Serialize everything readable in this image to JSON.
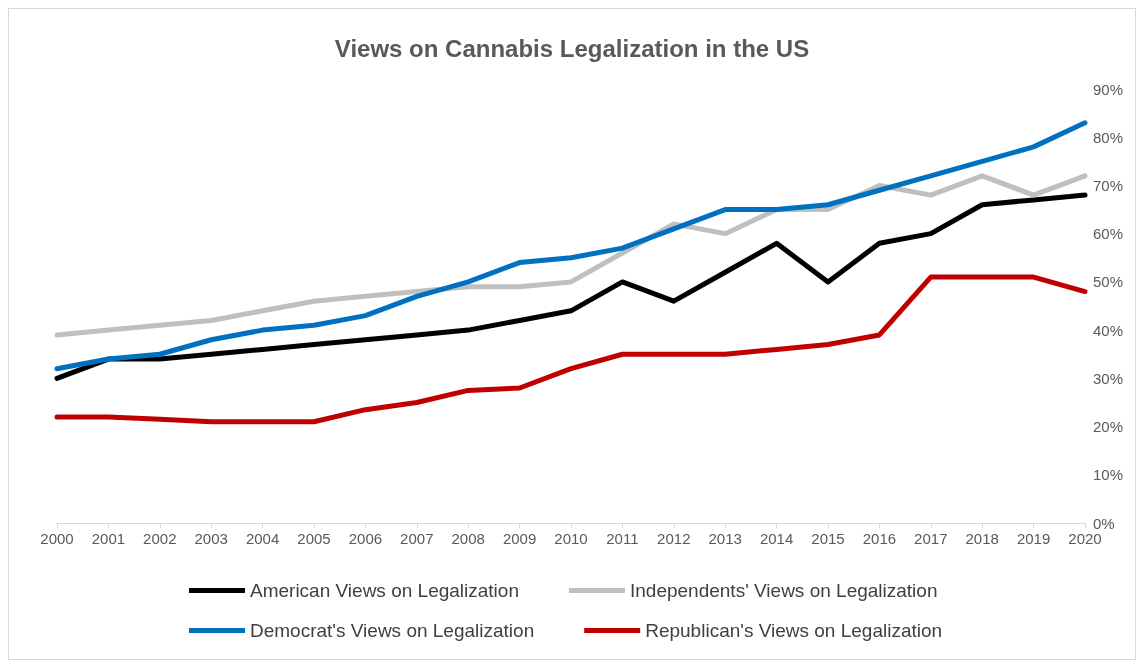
{
  "chart_data": {
    "type": "line",
    "title": "Views on Cannabis Legalization in the US",
    "categories": [
      "2000",
      "2001",
      "2002",
      "2003",
      "2004",
      "2005",
      "2006",
      "2007",
      "2008",
      "2009",
      "2010",
      "2011",
      "2012",
      "2013",
      "2014",
      "2015",
      "2016",
      "2017",
      "2018",
      "2019",
      "2020"
    ],
    "series": [
      {
        "name": "American Views on Legalization",
        "color": "#000000",
        "values": [
          30,
          34,
          34,
          35,
          36,
          37,
          38,
          39,
          40,
          42,
          44,
          50,
          46,
          52,
          58,
          50,
          58,
          60,
          66,
          67,
          68
        ]
      },
      {
        "name": "Independents' Views on Legalization",
        "color": "#bfbfbf",
        "values": [
          39,
          40,
          41,
          42,
          44,
          46,
          47,
          48,
          49,
          49,
          50,
          56,
          62,
          60,
          65,
          65,
          70,
          68,
          72,
          68,
          72
        ]
      },
      {
        "name": "Democrat's Views on Legalization",
        "color": "#0070c0",
        "values": [
          32,
          34,
          35,
          38,
          40,
          41,
          43,
          47,
          50,
          54,
          55,
          57,
          61,
          65,
          65,
          66,
          69,
          72,
          75,
          78,
          83
        ]
      },
      {
        "name": "Republican's Views on Legalization",
        "color": "#c00000",
        "values": [
          22,
          22,
          21.5,
          21,
          21,
          21,
          23.5,
          25,
          27.5,
          28,
          32,
          35,
          35,
          35,
          36,
          37,
          39,
          51,
          51,
          51,
          48
        ]
      }
    ],
    "ylim": [
      0,
      90
    ],
    "yticks": [
      {
        "value": 0,
        "label": "0%"
      },
      {
        "value": 10,
        "label": "10%"
      },
      {
        "value": 20,
        "label": "20%"
      },
      {
        "value": 30,
        "label": "30%"
      },
      {
        "value": 40,
        "label": "40%"
      },
      {
        "value": 50,
        "label": "50%"
      },
      {
        "value": 60,
        "label": "60%"
      },
      {
        "value": 70,
        "label": "70%"
      },
      {
        "value": 80,
        "label": "80%"
      },
      {
        "value": 90,
        "label": "90%"
      }
    ],
    "grid": false,
    "legend": "bottom",
    "marker": "none",
    "line_style": "solid"
  }
}
